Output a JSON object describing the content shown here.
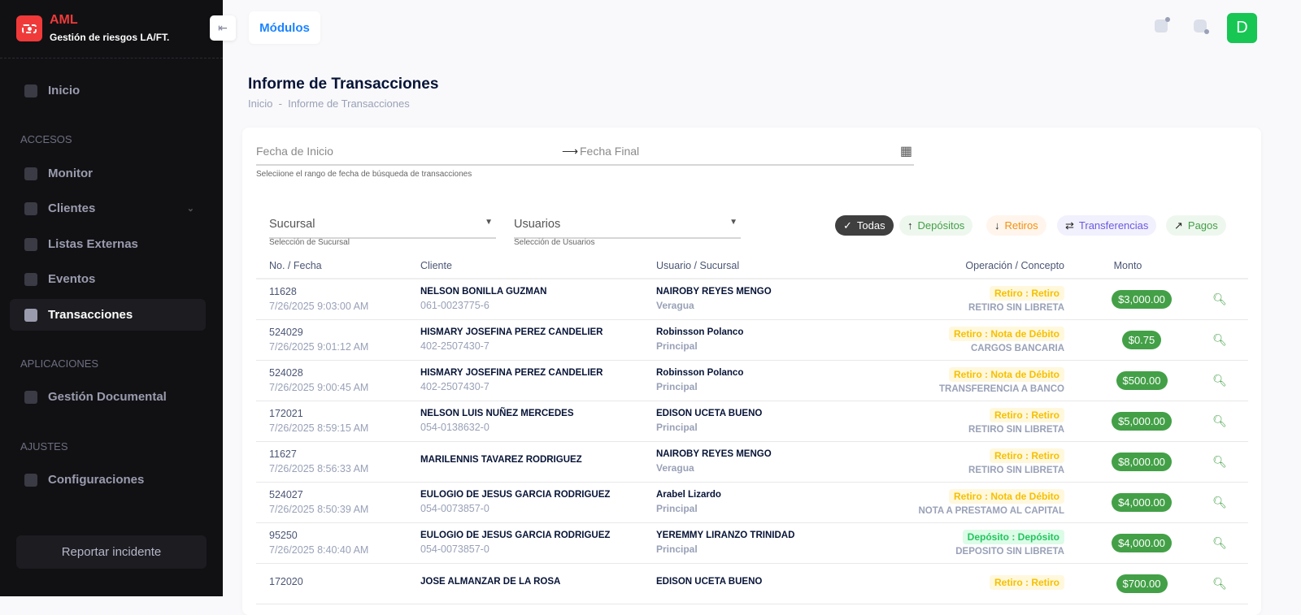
{
  "app": {
    "title": "AML",
    "subtitle": "Gestión de riesgos LA/FT."
  },
  "sidebar": {
    "home": "Inicio",
    "sections": {
      "accesos": "ACCESOS",
      "aplicaciones": "APLICACIONES",
      "ajustes": "AJUSTES"
    },
    "items": [
      {
        "label": "Monitor",
        "icon": "monitor-icon"
      },
      {
        "label": "Clientes",
        "icon": "users-icon"
      },
      {
        "label": "Listas Externas",
        "icon": "document-search-icon"
      },
      {
        "label": "Eventos",
        "icon": "bell-icon"
      },
      {
        "label": "Transacciones",
        "icon": "bar-chart-icon",
        "active": true
      },
      {
        "label": "Gestión Documental",
        "icon": "folder-icon"
      },
      {
        "label": "Configuraciones",
        "icon": "gear-icon"
      }
    ],
    "report": "Reportar incidente"
  },
  "topbar": {
    "modules": "Módulos",
    "avatar": "D",
    "avatar_color": "#17c653"
  },
  "page": {
    "title": "Informe de Transacciones",
    "breadcrumb": [
      "Inicio",
      "Informe de Transacciones"
    ]
  },
  "filters": {
    "start_placeholder": "Fecha de Inicio",
    "end_placeholder": "Fecha Final",
    "date_hint": "Seleciione el rango de fecha de búsqueda de transacciones",
    "branch": "Sucursal",
    "branch_hint": "Selección de Sucursal",
    "users": "Usuarios",
    "users_hint": "Selección de Usuarios",
    "chips": [
      {
        "label": "Todas",
        "icon": "✓",
        "active": true
      },
      {
        "label": "Depósitos",
        "icon": "↑"
      },
      {
        "label": "Retiros",
        "icon": "↓"
      },
      {
        "label": "Transferencias",
        "icon": "⇄"
      },
      {
        "label": "Pagos",
        "icon": "↗"
      }
    ]
  },
  "table": {
    "headers": [
      "No. / Fecha",
      "Cliente",
      "Usuario / Sucursal",
      "Operación / Concepto",
      "Monto"
    ],
    "rows": [
      {
        "no": "11628",
        "date": "7/26/2025 9:03:00 AM",
        "client": "NELSON BONILLA GUZMAN",
        "id": "061-0023775-6",
        "user": "NAIROBY REYES MENGO",
        "branch": "Veragua",
        "op": "Retiro : Retiro",
        "type": "retiro",
        "concept": "RETIRO SIN LIBRETA",
        "amount": "$3,000.00"
      },
      {
        "no": "524029",
        "date": "7/26/2025 9:01:12 AM",
        "client": "HISMARY JOSEFINA PEREZ CANDELIER",
        "id": "402-2507430-7",
        "user": "Robinsson Polanco",
        "branch": "Principal",
        "op": "Retiro : Nota de Débito",
        "type": "retiro",
        "concept": "CARGOS BANCARIA",
        "amount": "$0.75"
      },
      {
        "no": "524028",
        "date": "7/26/2025 9:00:45 AM",
        "client": "HISMARY JOSEFINA PEREZ CANDELIER",
        "id": "402-2507430-7",
        "user": "Robinsson Polanco",
        "branch": "Principal",
        "op": "Retiro : Nota de Débito",
        "type": "retiro",
        "concept": "TRANSFERENCIA A BANCO",
        "amount": "$500.00"
      },
      {
        "no": "172021",
        "date": "7/26/2025 8:59:15 AM",
        "client": "NELSON LUIS NUÑEZ MERCEDES",
        "id": "054-0138632-0",
        "user": "EDISON UCETA BUENO",
        "branch": "Principal",
        "op": "Retiro : Retiro",
        "type": "retiro",
        "concept": "RETIRO SIN LIBRETA",
        "amount": "$5,000.00"
      },
      {
        "no": "11627",
        "date": "7/26/2025 8:56:33 AM",
        "client": "MARILENNIS TAVAREZ RODRIGUEZ",
        "id": "",
        "user": "NAIROBY REYES MENGO",
        "branch": "Veragua",
        "op": "Retiro : Retiro",
        "type": "retiro",
        "concept": "RETIRO SIN LIBRETA",
        "amount": "$8,000.00"
      },
      {
        "no": "524027",
        "date": "7/26/2025 8:50:39 AM",
        "client": "EULOGIO DE JESUS GARCIA RODRIGUEZ",
        "id": "054-0073857-0",
        "user": "Arabel Lizardo",
        "branch": "Principal",
        "op": "Retiro : Nota de Débito",
        "type": "retiro",
        "concept": "NOTA A PRESTAMO AL CAPITAL",
        "amount": "$4,000.00"
      },
      {
        "no": "95250",
        "date": "7/26/2025 8:40:40 AM",
        "client": "EULOGIO DE JESUS GARCIA RODRIGUEZ",
        "id": "054-0073857-0",
        "user": "YEREMMY LIRANZO TRINIDAD",
        "branch": "Principal",
        "op": "Depósito : Depósito",
        "type": "deposito",
        "concept": "DEPOSITO SIN LIBRETA",
        "amount": "$4,000.00"
      },
      {
        "no": "172020",
        "date": "",
        "client": "JOSE ALMANZAR DE LA ROSA",
        "id": "",
        "user": "EDISON UCETA BUENO",
        "branch": "",
        "op": "Retiro : Retiro",
        "type": "retiro",
        "concept": "",
        "amount": "$700.00"
      }
    ]
  }
}
